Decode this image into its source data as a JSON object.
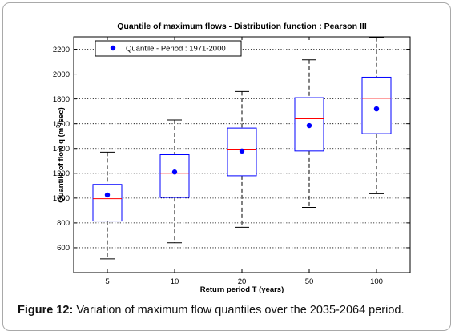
{
  "chart_data": {
    "type": "boxplot",
    "title": "Quantile of maximum flows - Distribution function : Pearson III",
    "xlabel": "Return period T (years)",
    "ylabel": "Quantile of flow q (m³/sec)",
    "ylabel_base": "Quantile of flow q (m",
    "ylabel_sup": "3",
    "ylabel_end": "/sec)",
    "categories": [
      "5",
      "10",
      "20",
      "50",
      "100"
    ],
    "ylim": [
      400,
      2300
    ],
    "yticks": [
      "600",
      "800",
      "1000",
      "1200",
      "1400",
      "1600",
      "1800",
      "2000",
      "2200"
    ],
    "ytick_values": [
      600,
      800,
      1000,
      1200,
      1400,
      1600,
      1800,
      2000,
      2200
    ],
    "grid": true,
    "legend": {
      "position": "top-left",
      "entries": [
        "Quantile - Period : 1971-2000"
      ]
    },
    "boxes": [
      {
        "category": "5",
        "min": 510,
        "q1": 815,
        "median": 995,
        "q3": 1110,
        "max": 1370,
        "point": 1025
      },
      {
        "category": "10",
        "min": 640,
        "q1": 1005,
        "median": 1200,
        "q3": 1350,
        "max": 1630,
        "point": 1210
      },
      {
        "category": "20",
        "min": 765,
        "q1": 1180,
        "median": 1395,
        "q3": 1565,
        "max": 1860,
        "point": 1380
      },
      {
        "category": "50",
        "min": 925,
        "q1": 1380,
        "median": 1640,
        "q3": 1810,
        "max": 2115,
        "point": 1585
      },
      {
        "category": "100",
        "min": 1035,
        "q1": 1520,
        "median": 1805,
        "q3": 1975,
        "max": 2295,
        "point": 1720
      }
    ],
    "colors": {
      "box": "#0000ff",
      "median": "#ff0000",
      "whisker": "#000000",
      "point": "#0000ff",
      "grid": "#000000"
    }
  },
  "caption": {
    "label": "Figure 12:",
    "text": " Variation of maximum flow quantiles over the 2035-2064 period."
  }
}
